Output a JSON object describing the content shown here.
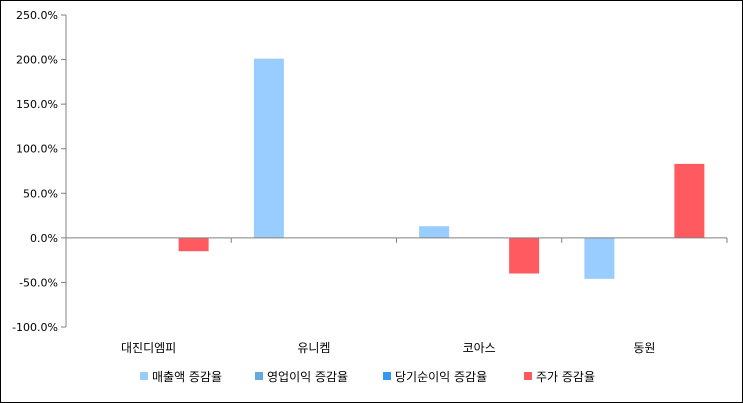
{
  "chart_data": {
    "type": "bar",
    "categories": [
      "대진디엠피",
      "유니켐",
      "코아스",
      "동원"
    ],
    "series": [
      {
        "name": "매출액 증감율",
        "color": "#99CCFF",
        "values": [
          0,
          201,
          13,
          -46
        ]
      },
      {
        "name": "영업이익 증감율",
        "color": "#66AADD",
        "values": [
          0,
          0,
          0,
          0
        ]
      },
      {
        "name": "당기순이익 증감율",
        "color": "#3399EE",
        "values": [
          0,
          0,
          0,
          0
        ]
      },
      {
        "name": "주가 증감율",
        "color": "#FF5A5F",
        "values": [
          -15,
          0,
          -40,
          83
        ]
      }
    ],
    "ylim": [
      -100,
      250
    ],
    "yticks": [
      -100,
      -50,
      0,
      50,
      100,
      150,
      200,
      250
    ],
    "ytick_labels": [
      "-100.0%",
      "-50.0%",
      "0.0%",
      "50.0%",
      "100.0%",
      "150.0%",
      "200.0%",
      "250.0%"
    ],
    "grid": false,
    "legend_position": "bottom"
  }
}
